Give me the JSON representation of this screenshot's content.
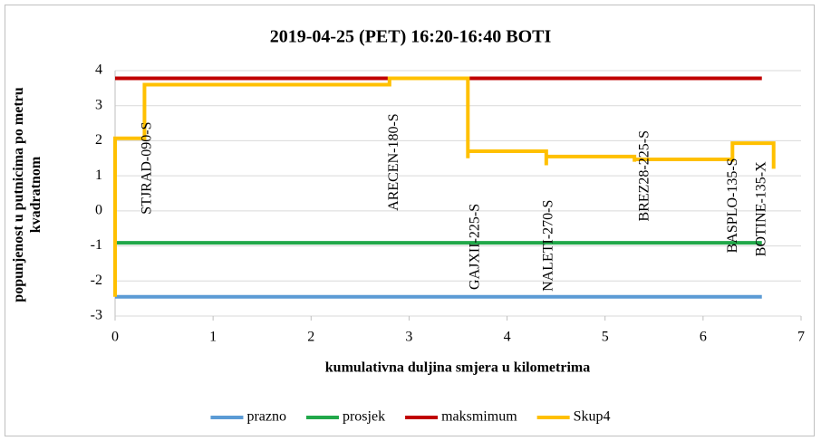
{
  "chart_data": {
    "type": "line",
    "title": "2019-04-25 (PET) 16:20-16:40 BOTI",
    "xlabel": "kumulativna duljina smjera u kilometrima",
    "ylabel": "popunjenost u putnicima po metru kvadratnom",
    "xlim": [
      0,
      7
    ],
    "xticks": [
      0,
      1,
      2,
      3,
      4,
      5,
      6,
      7
    ],
    "ylim": [
      -3,
      4
    ],
    "yticks": [
      -3,
      -2,
      -1,
      0,
      1,
      2,
      3,
      4
    ],
    "grid": true,
    "legend": "bottom",
    "series": [
      {
        "name": "prazno",
        "color": "#5b9bd5",
        "x": [
          0,
          6.6
        ],
        "values": [
          -2.45,
          -2.45
        ]
      },
      {
        "name": "prosjek",
        "color": "#21a84a",
        "x": [
          0,
          6.6
        ],
        "values": [
          -0.91,
          -0.91
        ]
      },
      {
        "name": "maksmimum",
        "color": "#c00000",
        "x": [
          0,
          6.6
        ],
        "values": [
          3.78,
          3.78
        ]
      },
      {
        "name": "Skup4",
        "color": "#ffc000",
        "x": [
          0,
          0,
          0.3,
          0.3,
          2.8,
          2.8,
          3.6,
          3.6,
          3.6,
          4.4,
          4.4,
          4.4,
          5.3,
          5.3,
          5.3,
          6.3,
          6.3,
          6.3,
          6.72,
          6.72
        ],
        "values": [
          -2.45,
          2.07,
          2.07,
          3.6,
          3.6,
          3.78,
          3.78,
          1.5,
          1.7,
          1.7,
          1.3,
          1.55,
          1.55,
          1.4,
          1.47,
          1.47,
          1.4,
          1.93,
          1.93,
          1.2
        ]
      }
    ],
    "annotations": [
      {
        "text": "STJRAD-090-S",
        "x": 0.33,
        "y": -0.1
      },
      {
        "text": "ARECEN-180-S",
        "x": 2.85,
        "y": 0
      },
      {
        "text": "GAJXII-225-S",
        "x": 3.68,
        "y": -2.25
      },
      {
        "text": "NALETI-270-S",
        "x": 4.43,
        "y": -2.3
      },
      {
        "text": "BREZ28-225-S",
        "x": 5.41,
        "y": -0.3
      },
      {
        "text": "BASPLO-135-S",
        "x": 6.31,
        "y": -1.2
      },
      {
        "text": "BOTINE-135-X",
        "x": 6.6,
        "y": -1.3
      }
    ]
  }
}
